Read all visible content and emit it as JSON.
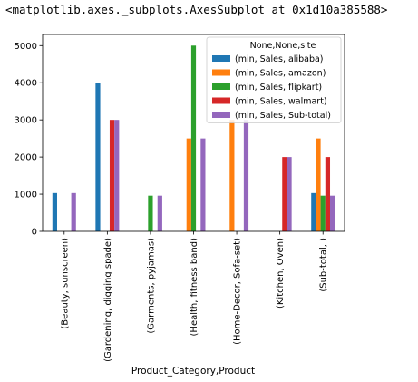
{
  "output_repr": "<matplotlib.axes._subplots.AxesSubplot at 0x1d10a385588>",
  "chart_data": {
    "type": "bar",
    "title": "",
    "xlabel": "Product_Category,Product",
    "ylabel": "",
    "ylim": [
      0,
      5300
    ],
    "yticks": [
      0,
      1000,
      2000,
      3000,
      4000,
      5000
    ],
    "categories": [
      "(Beauty, sunscreen)",
      "(Gardening, digging spade)",
      "(Garments, pyjamas)",
      "(Health, fitness band)",
      "(Home-Decor, Sofa-set)",
      "(Kitchen, Oven)",
      "(Sub-total, )"
    ],
    "legend": {
      "title": "None,None,site",
      "placement": "upper right"
    },
    "series": [
      {
        "name": "(min, Sales, alibaba)",
        "color": "#1f77b4",
        "values": [
          1030,
          4000,
          0,
          0,
          0,
          0,
          1030
        ]
      },
      {
        "name": "(min, Sales, amazon)",
        "color": "#ff7f0e",
        "values": [
          0,
          0,
          0,
          2500,
          3000,
          0,
          2500
        ]
      },
      {
        "name": "(min, Sales, flipkart)",
        "color": "#2ca02c",
        "values": [
          0,
          0,
          960,
          5000,
          0,
          0,
          960
        ]
      },
      {
        "name": "(min, Sales, walmart)",
        "color": "#d62728",
        "values": [
          0,
          3000,
          0,
          0,
          0,
          2000,
          2000
        ]
      },
      {
        "name": "(min, Sales, Sub-total)",
        "color": "#9467bd",
        "values": [
          1030,
          3000,
          960,
          2500,
          3000,
          2000,
          960
        ]
      }
    ]
  }
}
